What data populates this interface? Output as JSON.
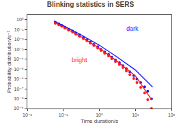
{
  "chart_data": {
    "type": "scatter",
    "title": "Blinking statistics in SERS",
    "x_label": "Time duration/s",
    "y_label": "Probability distribution/s⁻¹",
    "log": true,
    "grid": false,
    "xlim": [
      0.01,
      100
    ],
    "ylim": [
      1e-09,
      3
    ],
    "xticks": [
      {
        "value": 0.01,
        "label": "10⁻²"
      },
      {
        "value": 0.1,
        "label": "10⁻¹"
      },
      {
        "value": 1,
        "label": "10⁰"
      },
      {
        "value": 10,
        "label": "10¹"
      },
      {
        "value": 100,
        "label": "10²"
      }
    ],
    "yticks": [
      {
        "value": 1e-09,
        "label": "10⁻⁹"
      },
      {
        "value": 1e-08,
        "label": "10⁻⁸"
      },
      {
        "value": 1e-07,
        "label": "10⁻⁷"
      },
      {
        "value": 1e-06,
        "label": "10⁻⁶"
      },
      {
        "value": 1e-05,
        "label": "10⁻⁵"
      },
      {
        "value": 0.0001,
        "label": "10⁻⁴"
      },
      {
        "value": 0.001,
        "label": "10⁻³"
      },
      {
        "value": 0.01,
        "label": "10⁻²"
      },
      {
        "value": 0.1,
        "label": "10⁻¹"
      },
      {
        "value": 1,
        "label": "10⁰"
      }
    ],
    "series": [
      {
        "type": "scatter",
        "marker": "circle",
        "color": "#1a1aff",
        "x": [
          0.06,
          0.075,
          0.09,
          0.11,
          0.14,
          0.18,
          0.22,
          0.28,
          0.36,
          0.45,
          0.56,
          0.7,
          0.9,
          1.1,
          1.4,
          1.8,
          2.2,
          2.8,
          3.6,
          4.5,
          5.6,
          7.0,
          9.0,
          11.0,
          14.0,
          18.0,
          22.0,
          28.0
        ],
        "values": [
          0.55,
          0.38,
          0.28,
          0.18,
          0.11,
          0.072,
          0.045,
          0.028,
          0.016,
          0.0095,
          0.0056,
          0.0032,
          0.0018,
          0.001,
          0.00055,
          0.0003,
          0.00016,
          8.5e-05,
          4.4e-05,
          2.2e-05,
          1.1e-05,
          5.2e-06,
          2.2e-06,
          1e-06,
          4.2e-07,
          1.6e-07,
          5.5e-08,
          9.5e-09
        ]
      },
      {
        "type": "scatter",
        "marker": "circle",
        "color": "#ff1a1a",
        "x": [
          0.06,
          0.075,
          0.09,
          0.11,
          0.14,
          0.18,
          0.22,
          0.28,
          0.36,
          0.45,
          0.56,
          0.7,
          0.9,
          1.1,
          1.4,
          1.8,
          2.2,
          2.8,
          3.6,
          4.5,
          5.6,
          7.0,
          9.0,
          11.0,
          14.0,
          18.0,
          22.0,
          28.0
        ],
        "values": [
          0.42,
          0.3,
          0.22,
          0.14,
          0.088,
          0.055,
          0.035,
          0.021,
          0.012,
          0.0072,
          0.0042,
          0.0024,
          0.0013,
          0.00075,
          0.0004,
          0.00021,
          0.00011,
          5.8e-05,
          2.9e-05,
          1.4e-05,
          6.5e-06,
          2.8e-06,
          1.1e-06,
          4.2e-07,
          1.4e-07,
          3.8e-08,
          8e-09,
          1e-09
        ]
      },
      {
        "type": "line",
        "line_style": "solid",
        "color": "#1a1aff",
        "x": [
          0.055,
          0.09,
          0.3,
          1.0,
          3.0,
          10.0,
          30.0
        ],
        "values": [
          0.75,
          0.3,
          0.032,
          0.0026,
          0.00018,
          8e-06,
          1.5e-07
        ]
      },
      {
        "type": "line",
        "line_style": "solid",
        "color": "#ff1a1a",
        "x": [
          0.055,
          0.09,
          0.3,
          1.0,
          3.0,
          10.0,
          28.0
        ],
        "values": [
          0.6,
          0.22,
          0.02,
          0.0013,
          6.8e-05,
          2e-06,
          8e-09
        ]
      }
    ],
    "annotations": [
      {
        "text": "dark",
        "color": "#1a1aff"
      },
      {
        "text": "bright",
        "color": "#ff1a1a"
      }
    ]
  }
}
